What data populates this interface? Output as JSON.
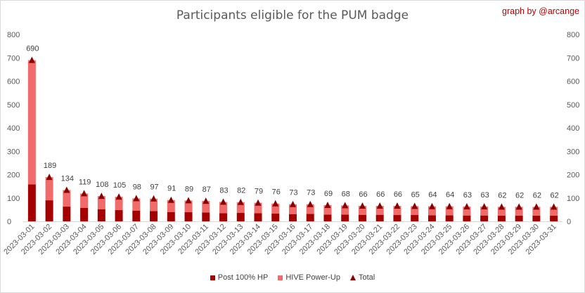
{
  "title": "Participants eligible for the PUM badge",
  "credit": "graph by @arcange",
  "colors": {
    "post": "#a40000",
    "powerup": "#f26b6b",
    "total": "#8b0000"
  },
  "chart_data": {
    "type": "bar",
    "stacked": true,
    "categories": [
      "2023-03-01",
      "2023-03-02",
      "2023-03-03",
      "2023-03-04",
      "2023-03-05",
      "2023-03-06",
      "2023-03-07",
      "2023-03-08",
      "2023-03-09",
      "2023-03-10",
      "2023-03-11",
      "2023-03-12",
      "2023-03-13",
      "2023-03-14",
      "2023-03-15",
      "2023-03-16",
      "2023-03-17",
      "2023-03-18",
      "2023-03-19",
      "2023-03-20",
      "2023-03-21",
      "2023-03-22",
      "2023-03-23",
      "2023-03-24",
      "2023-03-25",
      "2023-03-26",
      "2023-03-27",
      "2023-03-28",
      "2023-03-29",
      "2023-03-30",
      "2023-03-31"
    ],
    "series": [
      {
        "name": "Post 100% HP",
        "values": [
          158,
          90,
          63,
          58,
          52,
          48,
          46,
          44,
          40,
          39,
          38,
          35,
          36,
          35,
          33,
          31,
          32,
          29,
          29,
          28,
          28,
          27,
          27,
          26,
          26,
          25,
          25,
          24,
          24,
          24,
          24
        ]
      },
      {
        "name": "HIVE Power-Up",
        "values": [
          532,
          99,
          71,
          61,
          56,
          57,
          52,
          53,
          51,
          50,
          49,
          48,
          46,
          44,
          43,
          42,
          41,
          40,
          39,
          38,
          38,
          39,
          38,
          38,
          38,
          38,
          38,
          38,
          38,
          38,
          38
        ]
      }
    ],
    "totals": {
      "name": "Total",
      "values": [
        690,
        189,
        134,
        119,
        108,
        105,
        98,
        97,
        91,
        89,
        87,
        83,
        82,
        79,
        76,
        73,
        73,
        69,
        68,
        66,
        66,
        66,
        65,
        64,
        64,
        63,
        63,
        62,
        62,
        62,
        62
      ]
    },
    "ylim": [
      0,
      800
    ],
    "yticks": [
      0,
      100,
      200,
      300,
      400,
      500,
      600,
      700,
      800
    ],
    "secondary_y_axis": true,
    "grid": false,
    "legend_position": "bottom"
  }
}
